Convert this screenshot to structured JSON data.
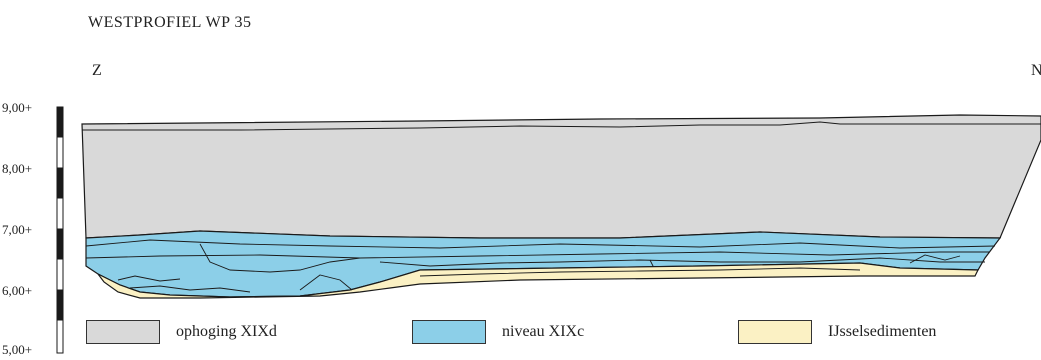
{
  "title": "WESTPROFIEL WP 35",
  "directions": {
    "left": "Z",
    "right": "N"
  },
  "scale": {
    "labels": [
      "9,00+",
      "8,00+",
      "7,00+",
      "6,00+",
      "5,00+"
    ]
  },
  "legend": [
    {
      "label": "ophoging XIXd",
      "color": "#d9d9d9"
    },
    {
      "label": "niveau XIXc",
      "color": "#8ccfe8"
    },
    {
      "label": "IJsselsedimenten",
      "color": "#fbf1c4"
    }
  ],
  "colors": {
    "ophoging": "#d9d9d9",
    "niveau": "#8ccfe8",
    "ijssel": "#fbf1c4",
    "line": "#1a1a1a"
  }
}
